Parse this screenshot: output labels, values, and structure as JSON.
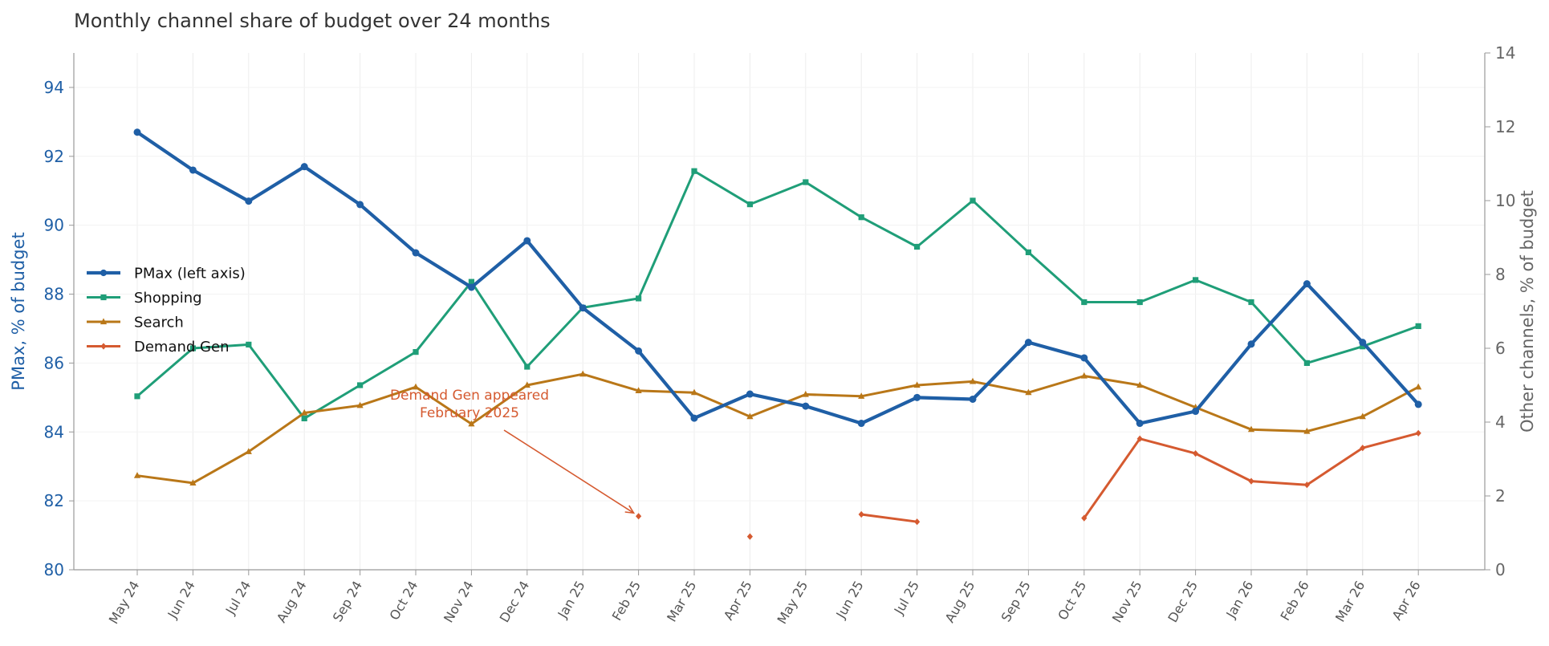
{
  "chart_data": {
    "type": "line",
    "title": "Monthly channel share of budget over 24 months",
    "x": [
      "May 24",
      "Jun 24",
      "Jul 24",
      "Aug 24",
      "Sep 24",
      "Oct 24",
      "Nov 24",
      "Dec 24",
      "Jan 25",
      "Feb 25",
      "Mar 25",
      "Apr 25",
      "May 25",
      "Jun 25",
      "Jul 25",
      "Aug 25",
      "Sep 25",
      "Oct 25",
      "Nov 25",
      "Dec 25",
      "Jan 26",
      "Feb 26",
      "Mar 26",
      "Apr 26"
    ],
    "ylabel_left": "PMax, % of budget",
    "ylabel_right": "Other channels, % of budget",
    "ylim_left": [
      80,
      95
    ],
    "yticks_left": [
      80,
      82,
      84,
      86,
      88,
      90,
      92,
      94
    ],
    "ylim_right": [
      0,
      14
    ],
    "yticks_right": [
      0,
      2,
      4,
      6,
      8,
      10,
      12,
      14
    ],
    "grid": true,
    "legend_position": "middle-left",
    "series": [
      {
        "name": "PMax (left axis)",
        "axis": "left",
        "color": "#1f5fa6",
        "marker": "circle",
        "values": [
          92.7,
          91.6,
          90.7,
          91.7,
          90.6,
          89.2,
          88.2,
          89.55,
          87.6,
          86.35,
          84.4,
          85.1,
          84.75,
          84.25,
          85.0,
          84.95,
          86.6,
          86.15,
          84.25,
          84.6,
          86.55,
          88.3,
          86.6,
          84.8
        ]
      },
      {
        "name": "Shopping",
        "axis": "right",
        "color": "#1f9e78",
        "marker": "square",
        "values": [
          4.7,
          6.0,
          6.1,
          4.1,
          5.0,
          5.9,
          7.8,
          5.5,
          7.1,
          7.35,
          10.8,
          9.9,
          10.5,
          9.55,
          8.75,
          10.0,
          8.6,
          7.25,
          7.25,
          7.85,
          7.25,
          5.6,
          6.05,
          6.6
        ]
      },
      {
        "name": "Search",
        "axis": "right",
        "color": "#b97718",
        "marker": "triangle",
        "values": [
          2.55,
          2.35,
          3.2,
          4.25,
          4.45,
          4.95,
          3.95,
          5.0,
          5.3,
          4.85,
          4.8,
          4.15,
          4.75,
          4.7,
          5.0,
          5.1,
          4.8,
          5.25,
          5.0,
          4.4,
          3.8,
          3.75,
          4.15,
          4.95
        ]
      },
      {
        "name": "Demand Gen",
        "axis": "right",
        "color": "#d55a30",
        "marker": "diamond",
        "values": [
          null,
          null,
          null,
          null,
          null,
          null,
          null,
          null,
          null,
          1.45,
          null,
          0.9,
          null,
          1.5,
          1.3,
          null,
          null,
          1.4,
          3.55,
          3.15,
          2.4,
          2.3,
          3.3,
          3.7
        ]
      }
    ],
    "annotations": [
      {
        "text": [
          "Demand Gen appeared",
          "February 2025"
        ],
        "target_series": "Demand Gen",
        "target_x": "Feb 25",
        "target_y": 1.45,
        "color": "#d55a30"
      }
    ]
  }
}
